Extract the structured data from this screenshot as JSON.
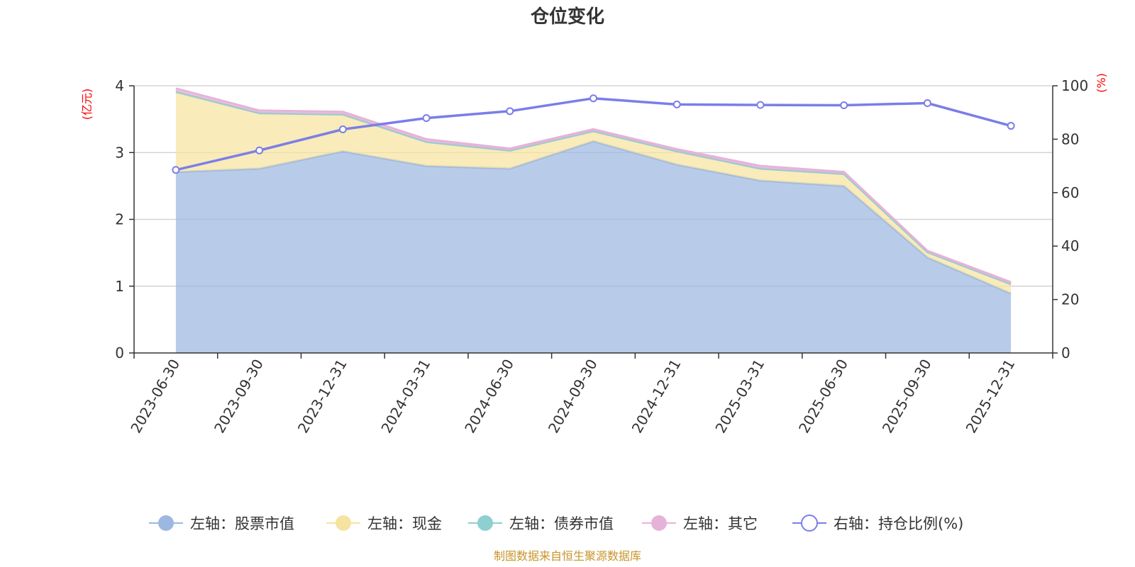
{
  "chart_data": {
    "type": "area",
    "title": "仓位变化",
    "categories": [
      "2023-06-30",
      "2023-09-30",
      "2023-12-31",
      "2024-03-31",
      "2024-06-30",
      "2024-09-30",
      "2024-12-31",
      "2025-03-31",
      "2025-06-30",
      "2025-09-30",
      "2025-12-31"
    ],
    "left_axis": {
      "unit": "(亿元)",
      "ylim": [
        0,
        4
      ],
      "ticks": [
        "0",
        "1",
        "2",
        "3",
        "4"
      ]
    },
    "right_axis": {
      "unit": "(%)",
      "ylim": [
        0,
        100
      ],
      "ticks": [
        "0",
        "20",
        "40",
        "60",
        "80",
        "100"
      ]
    },
    "grid": true,
    "legend_position": "bottom",
    "series": [
      {
        "name": "左轴：股票市值",
        "axis": "left",
        "type": "area",
        "stack": true,
        "color": "#9db8e0",
        "values": [
          2.71,
          2.76,
          3.02,
          2.8,
          2.76,
          3.17,
          2.82,
          2.58,
          2.5,
          1.43,
          0.89
        ]
      },
      {
        "name": "左轴：现金",
        "axis": "left",
        "type": "area",
        "stack": true,
        "color": "#f7e3a0",
        "values": [
          1.2,
          0.83,
          0.55,
          0.36,
          0.27,
          0.15,
          0.2,
          0.18,
          0.18,
          0.08,
          0.14
        ]
      },
      {
        "name": "左轴：债券市值",
        "axis": "left",
        "type": "area",
        "stack": true,
        "color": "#8ecfd0",
        "values": [
          0,
          0,
          0,
          0,
          0,
          0,
          0,
          0,
          0,
          0,
          0
        ]
      },
      {
        "name": "左轴：其它",
        "axis": "left",
        "type": "area",
        "stack": true,
        "color": "#e6b3d8",
        "values": [
          0.05,
          0.04,
          0.04,
          0.04,
          0.03,
          0.03,
          0.03,
          0.04,
          0.03,
          0.02,
          0.03
        ]
      },
      {
        "name": "右轴：持仓比例(%)",
        "axis": "right",
        "type": "line",
        "color": "#7a7ee8",
        "values": [
          68.5,
          75.8,
          83.7,
          87.9,
          90.5,
          95.3,
          93.0,
          92.8,
          92.7,
          93.5,
          85.0
        ]
      }
    ],
    "source_note": "制图数据来自恒生聚源数据库"
  }
}
